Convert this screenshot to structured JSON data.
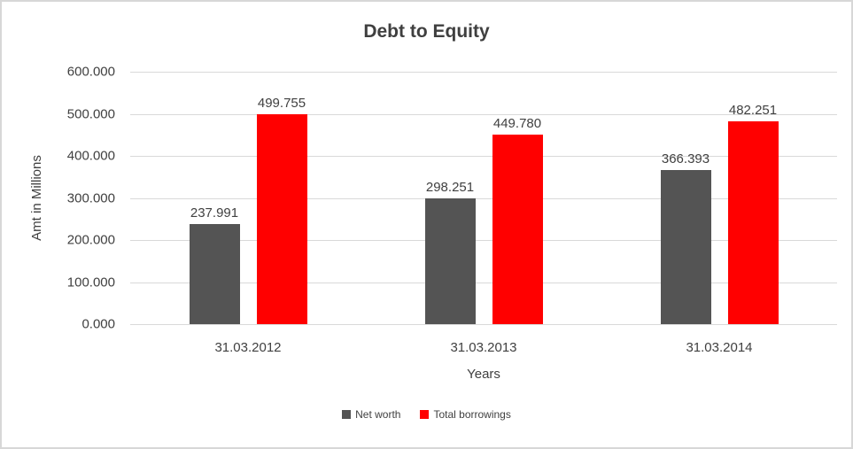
{
  "chart_data": {
    "type": "bar",
    "title": "Debt to Equity",
    "xlabel": "Years",
    "ylabel": "Amt in Millions",
    "categories": [
      "31.03.2012",
      "31.03.2013",
      "31.03.2014"
    ],
    "series": [
      {
        "name": "Net worth",
        "color": "#545454",
        "values": [
          237.991,
          298.251,
          366.393
        ],
        "labels": [
          "237.991",
          "298.251",
          "366.393"
        ]
      },
      {
        "name": "Total borrowings",
        "color": "#ff0000",
        "values": [
          499.755,
          449.78,
          482.251
        ],
        "labels": [
          "499.755",
          "449.780",
          "482.251"
        ]
      }
    ],
    "ylim": [
      0,
      600
    ],
    "yticks": [
      "600.000",
      "500.000",
      "400.000",
      "300.000",
      "200.000",
      "100.000",
      "0.000"
    ],
    "grid": true,
    "legend_position": "bottom",
    "colors": {
      "text": "#404040",
      "gridline": "#d9d9d9",
      "border": "#d7d7d7",
      "background": "#ffffff"
    }
  }
}
